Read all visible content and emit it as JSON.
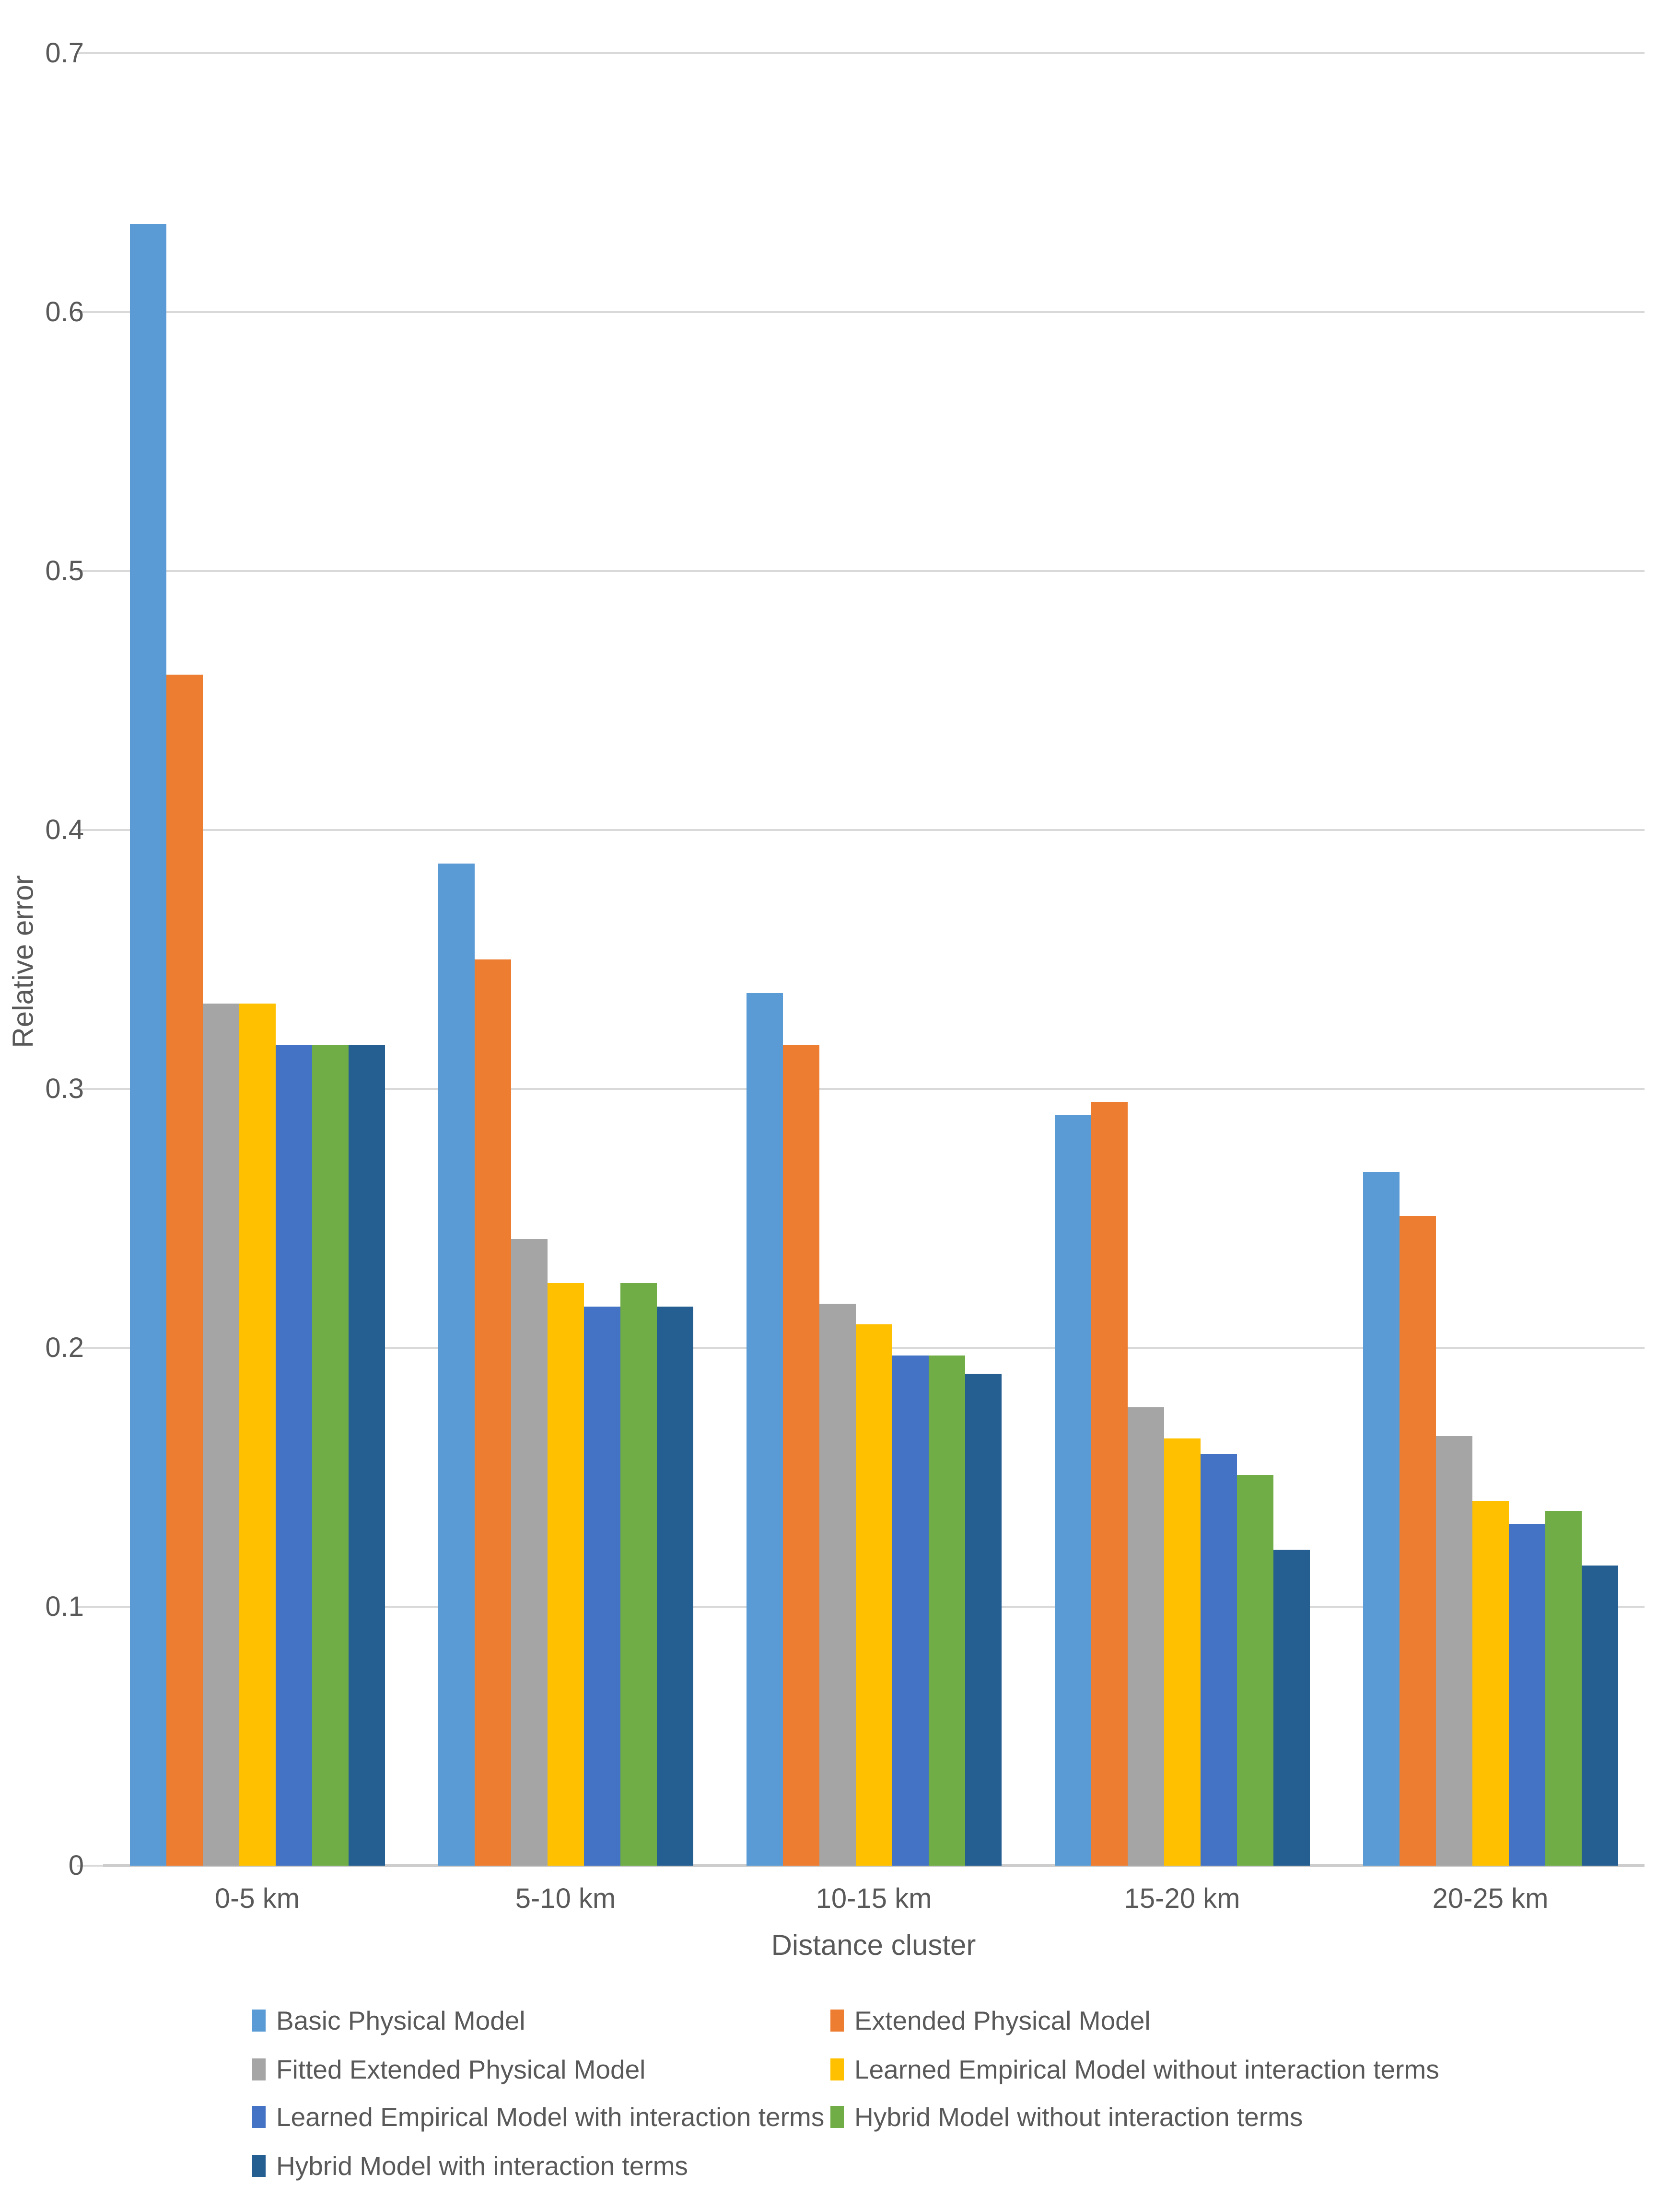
{
  "colors": {
    "background": "#FFFFFF",
    "text": "#595959",
    "gridline": "#D9D9D9",
    "axis_line": "#CDCDCD"
  },
  "chart_data": {
    "type": "bar",
    "title": "",
    "xlabel": "Distance cluster",
    "ylabel": "Relative error",
    "ylim": [
      0,
      0.7
    ],
    "ytick_step": 0.1,
    "ytick_labels": [
      "0",
      "0.1",
      "0.2",
      "0.3",
      "0.4",
      "0.5",
      "0.6",
      "0.7"
    ],
    "grid": true,
    "legend_position": "bottom-two-columns",
    "categories": [
      "0-5 km",
      "5-10 km",
      "10-15 km",
      "15-20 km",
      "20-25 km"
    ],
    "series": [
      {
        "name": "Basic Physical Model",
        "color": "#5B9BD5",
        "values": [
          0.634,
          0.387,
          0.337,
          0.29,
          0.268
        ]
      },
      {
        "name": "Extended Physical Model",
        "color": "#ED7D31",
        "values": [
          0.46,
          0.35,
          0.317,
          0.295,
          0.251
        ]
      },
      {
        "name": "Fitted Extended Physical Model",
        "color": "#A5A5A5",
        "values": [
          0.333,
          0.242,
          0.217,
          0.177,
          0.166
        ]
      },
      {
        "name": "Learned Empirical Model without interaction terms",
        "color": "#FFC000",
        "values": [
          0.333,
          0.225,
          0.209,
          0.165,
          0.141
        ]
      },
      {
        "name": "Learned Empirical Model with interaction terms",
        "color": "#4472C4",
        "values": [
          0.317,
          0.216,
          0.197,
          0.159,
          0.132
        ]
      },
      {
        "name": "Hybrid Model without interaction terms",
        "color": "#70AD47",
        "values": [
          0.317,
          0.225,
          0.197,
          0.151,
          0.137
        ]
      },
      {
        "name": "Hybrid Model with interaction terms",
        "color": "#255E91",
        "values": [
          0.317,
          0.216,
          0.19,
          0.122,
          0.116
        ]
      }
    ]
  }
}
